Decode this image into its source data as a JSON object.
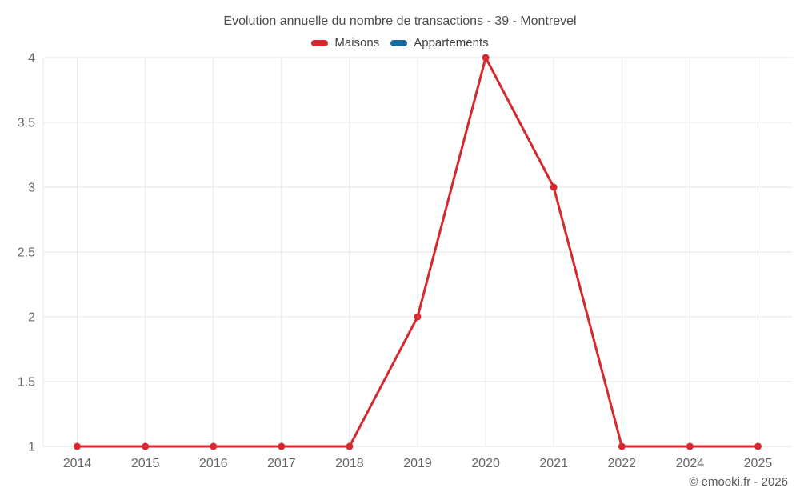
{
  "footer": {
    "copyright": "© emooki.fr - 2026"
  },
  "chart_data": {
    "type": "line",
    "title": "Evolution annuelle du nombre de transactions - 39 - Montrevel",
    "categories": [
      "2014",
      "2015",
      "2016",
      "2017",
      "2018",
      "2019",
      "2020",
      "2021",
      "2022",
      "2024",
      "2025"
    ],
    "series": [
      {
        "name": "Maisons",
        "color": "#d7282f",
        "values": [
          1,
          1,
          1,
          1,
          1,
          2,
          4,
          3,
          1,
          1,
          1
        ]
      },
      {
        "name": "Appartements",
        "color": "#17699f",
        "values": []
      }
    ],
    "xlabel": "",
    "ylabel": "",
    "ylim": [
      1,
      4
    ],
    "yticks": [
      1,
      1.5,
      2,
      2.5,
      3,
      3.5,
      4
    ],
    "grid": true,
    "legend_position": "top",
    "grid_color": "#e6e6e6",
    "axis_label_color": "#666666",
    "marker_radius": 4.5,
    "line_width": 3
  }
}
